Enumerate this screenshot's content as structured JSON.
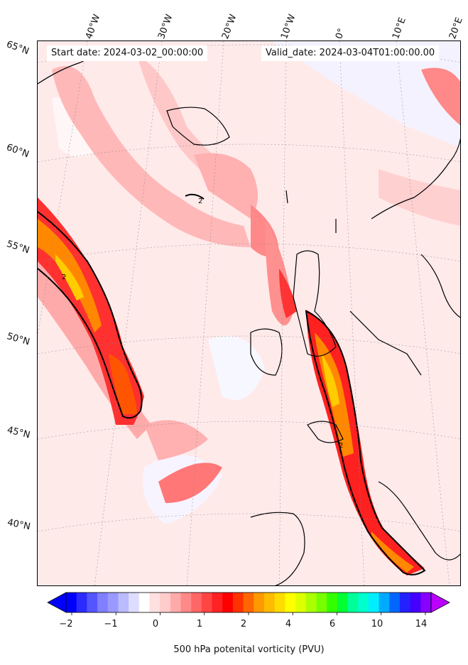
{
  "header": {
    "start_date": "Start date: 2024-03-02_00:00:00",
    "valid_date": "Valid_date: 2024-03-04T01:00:00.00"
  },
  "longitude_labels": [
    "40°W",
    "30°W",
    "20°W",
    "10°W",
    "0°",
    "10°E",
    "20°E"
  ],
  "latitude_labels": [
    "65°N",
    "60°N",
    "55°N",
    "50°N",
    "45°N",
    "40°N"
  ],
  "contour_label": "2",
  "colorbar": {
    "title": "500 hPa potenital vorticity (PVU)",
    "ticks": [
      "−2",
      "−1",
      "0",
      "1",
      "2",
      "4",
      "6",
      "10",
      "14"
    ],
    "colors": [
      "#0000ff",
      "#2b2bff",
      "#5555ff",
      "#7f7fff",
      "#9999ff",
      "#bbbbff",
      "#ddddff",
      "#ffffff",
      "#ffe0e0",
      "#ffcccc",
      "#ffaaaa",
      "#ff8888",
      "#ff6666",
      "#ff4444",
      "#ff2222",
      "#ff0000",
      "#ff3300",
      "#ff6600",
      "#ff9900",
      "#ffbb00",
      "#ffdd00",
      "#ffff00",
      "#ddff00",
      "#aaff00",
      "#77ff00",
      "#33ff00",
      "#00ff33",
      "#00ff99",
      "#00ffcc",
      "#00eeff",
      "#00aaff",
      "#0066ff",
      "#2222ff",
      "#4400ff",
      "#8800ff"
    ],
    "extend_low": "#0000ff",
    "extend_high": "#bb00ff"
  }
}
